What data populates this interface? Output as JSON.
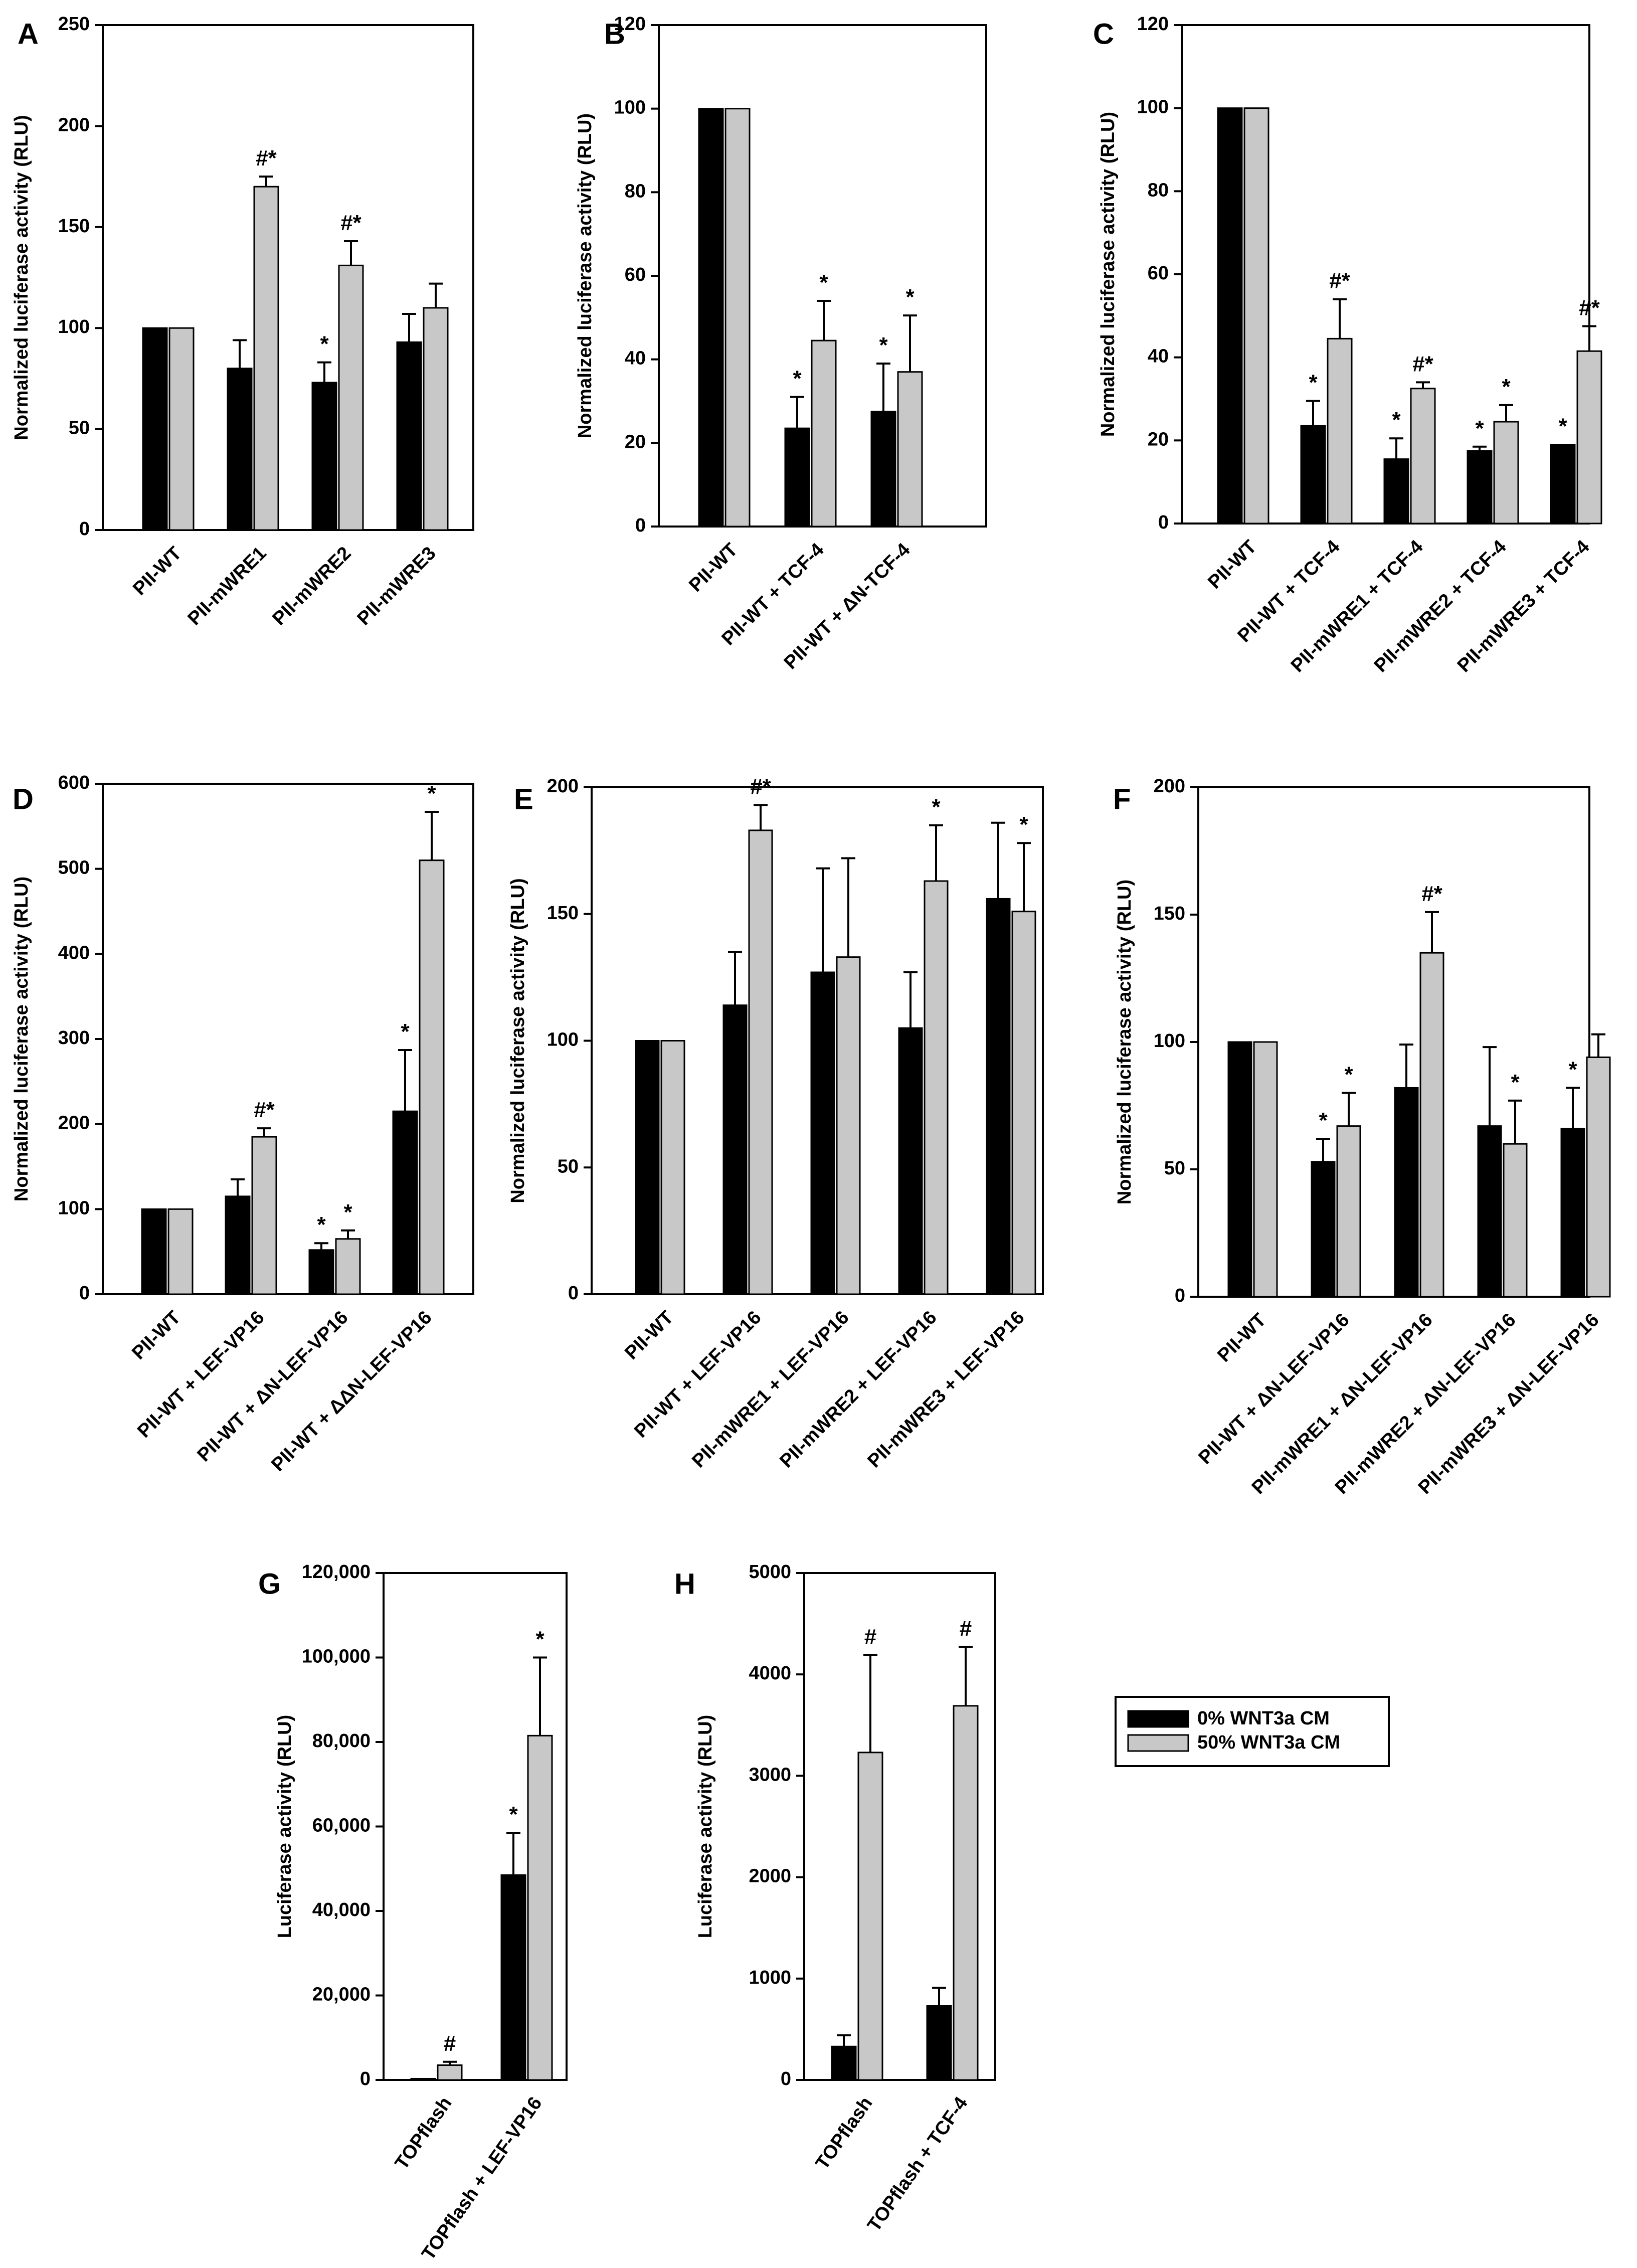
{
  "legend": {
    "items": [
      {
        "label": "0% WNT3a CM",
        "color": "#000000"
      },
      {
        "label": "50% WNT3a CM",
        "color": "#c8c8c8"
      }
    ]
  },
  "chart_data": [
    {
      "panel": "A",
      "type": "bar",
      "ylabel": "Normalized luciferase activity (RLU)",
      "ylim": [
        0,
        250
      ],
      "ticks": [
        0,
        50,
        100,
        150,
        200,
        250
      ],
      "tick_labels": [
        "0",
        "50",
        "100",
        "150",
        "200",
        "250"
      ],
      "categories": [
        "PII-WT",
        "PII-mWRE1",
        "PII-mWRE2",
        "PII-mWRE3"
      ],
      "series": [
        {
          "name": "0% WNT3a CM",
          "values": [
            100,
            80,
            73,
            93
          ],
          "errors": [
            0,
            14,
            10,
            14
          ],
          "sig": [
            "",
            "",
            "*",
            ""
          ]
        },
        {
          "name": "50% WNT3a CM",
          "values": [
            100,
            170,
            131,
            110
          ],
          "errors": [
            0,
            5,
            12,
            12
          ],
          "sig": [
            "",
            "#*",
            "#*",
            ""
          ]
        }
      ]
    },
    {
      "panel": "B",
      "type": "bar",
      "ylabel": "Normalized luciferase activity (RLU)",
      "ylim": [
        0,
        120
      ],
      "ticks": [
        0,
        20,
        40,
        60,
        80,
        100,
        120
      ],
      "tick_labels": [
        "0",
        "20",
        "40",
        "60",
        "80",
        "100",
        "120"
      ],
      "categories": [
        "PII-WT",
        "PII-WT + TCF-4",
        "PII-WT + ΔN-TCF-4"
      ],
      "series": [
        {
          "name": "0% WNT3a CM",
          "values": [
            100,
            23.5,
            27.5
          ],
          "errors": [
            0,
            7.5,
            11.5
          ],
          "sig": [
            "",
            "*",
            "*"
          ]
        },
        {
          "name": "50% WNT3a CM",
          "values": [
            100,
            44.5,
            37
          ],
          "errors": [
            0,
            9.5,
            13.5
          ],
          "sig": [
            "",
            "*",
            "*"
          ]
        }
      ]
    },
    {
      "panel": "C",
      "type": "bar",
      "ylabel": "Normalized luciferase activity (RLU)",
      "ylim": [
        0,
        120
      ],
      "ticks": [
        0,
        20,
        40,
        60,
        80,
        100,
        120
      ],
      "tick_labels": [
        "0",
        "20",
        "40",
        "60",
        "80",
        "100",
        "120"
      ],
      "categories": [
        "PII-WT",
        "PII-WT + TCF-4",
        "PII-mWRE1 + TCF-4",
        "PII-mWRE2 + TCF-4",
        "PII-mWRE3 + TCF-4"
      ],
      "series": [
        {
          "name": "0% WNT3a CM",
          "values": [
            100,
            23.5,
            15.5,
            17.5,
            19
          ],
          "errors": [
            0,
            6,
            5,
            1,
            0
          ],
          "sig": [
            "",
            "*",
            "*",
            "*",
            "*"
          ]
        },
        {
          "name": "50% WNT3a CM",
          "values": [
            100,
            44.5,
            32.5,
            24.5,
            41.5
          ],
          "errors": [
            0,
            9.5,
            1.5,
            4,
            6
          ],
          "sig": [
            "",
            "#*",
            "#*",
            "*",
            "#*"
          ]
        }
      ]
    },
    {
      "panel": "D",
      "type": "bar",
      "ylabel": "Normalized luciferase activity (RLU)",
      "ylim": [
        0,
        600
      ],
      "ticks": [
        0,
        100,
        200,
        300,
        400,
        500,
        600
      ],
      "tick_labels": [
        "0",
        "100",
        "200",
        "300",
        "400",
        "500",
        "600"
      ],
      "categories": [
        "PII-WT",
        "PII-WT + LEF-VP16",
        "PII-WT + ΔN-LEF-VP16",
        "PII-WT + ΔΔN-LEF-VP16"
      ],
      "series": [
        {
          "name": "0% WNT3a CM",
          "values": [
            100,
            115,
            52,
            215
          ],
          "errors": [
            0,
            20,
            8,
            72
          ],
          "sig": [
            "",
            "",
            "*",
            "*"
          ]
        },
        {
          "name": "50% WNT3a CM",
          "values": [
            100,
            185,
            65,
            510
          ],
          "errors": [
            0,
            10,
            10,
            57
          ],
          "sig": [
            "",
            "#*",
            "*",
            "*"
          ]
        }
      ]
    },
    {
      "panel": "E",
      "type": "bar",
      "ylabel": "Normalized luciferase activity (RLU)",
      "ylim": [
        0,
        200
      ],
      "ticks": [
        0,
        50,
        100,
        150,
        200
      ],
      "tick_labels": [
        "0",
        "50",
        "100",
        "150",
        "200"
      ],
      "categories": [
        "PII-WT",
        "PII-WT + LEF-VP16",
        "PII-mWRE1 + LEF-VP16",
        "PII-mWRE2 + LEF-VP16",
        "PII-mWRE3 + LEF-VP16"
      ],
      "series": [
        {
          "name": "0% WNT3a CM",
          "values": [
            100,
            114,
            127,
            105,
            156
          ],
          "errors": [
            0,
            21,
            41,
            22,
            30
          ],
          "sig": [
            "",
            "",
            "",
            "",
            ""
          ]
        },
        {
          "name": "50% WNT3a CM",
          "values": [
            100,
            183,
            133,
            163,
            151
          ],
          "errors": [
            0,
            10,
            39,
            22,
            27
          ],
          "sig": [
            "",
            "#*",
            "",
            "*",
            "*"
          ]
        }
      ]
    },
    {
      "panel": "F",
      "type": "bar",
      "ylabel": "Normalized luciferase activity (RLU)",
      "ylim": [
        0,
        200
      ],
      "ticks": [
        0,
        50,
        100,
        150,
        200
      ],
      "tick_labels": [
        "0",
        "50",
        "100",
        "150",
        "200"
      ],
      "categories": [
        "PII-WT",
        "PII-WT + ΔN-LEF-VP16",
        "PII-mWRE1 + ΔN-LEF-VP16",
        "PII-mWRE2 + ΔN-LEF-VP16",
        "PII-mWRE3 + ΔN-LEF-VP16"
      ],
      "series": [
        {
          "name": "0% WNT3a CM",
          "values": [
            100,
            53,
            82,
            67,
            66
          ],
          "errors": [
            0,
            9,
            17,
            31,
            16
          ],
          "sig": [
            "",
            "*",
            "",
            "",
            "*"
          ]
        },
        {
          "name": "50% WNT3a CM",
          "values": [
            100,
            67,
            135,
            60,
            94
          ],
          "errors": [
            0,
            13,
            16,
            17,
            9
          ],
          "sig": [
            "",
            "*",
            "#*",
            "*",
            ""
          ]
        }
      ]
    },
    {
      "panel": "G",
      "type": "bar",
      "ylabel": "Luciferase activity (RLU)",
      "ylim": [
        0,
        120000
      ],
      "ticks": [
        0,
        20000,
        40000,
        60000,
        80000,
        100000,
        120000
      ],
      "tick_labels": [
        "0",
        "20,000",
        "40,000",
        "60,000",
        "80,000",
        "100,000",
        "120,000"
      ],
      "categories": [
        "TOPflash",
        "TOPflash + LEF-VP16"
      ],
      "series": [
        {
          "name": "0% WNT3a CM",
          "values": [
            300,
            48500
          ],
          "errors": [
            0,
            10000
          ],
          "sig": [
            "",
            "*"
          ]
        },
        {
          "name": "50% WNT3a CM",
          "values": [
            3500,
            81500
          ],
          "errors": [
            800,
            18500
          ],
          "sig": [
            "#",
            "*"
          ]
        }
      ]
    },
    {
      "panel": "H",
      "type": "bar",
      "ylabel": "Luciferase activity (RLU)",
      "ylim": [
        0,
        5000
      ],
      "ticks": [
        0,
        1000,
        2000,
        3000,
        4000,
        5000
      ],
      "tick_labels": [
        "0",
        "1000",
        "2000",
        "3000",
        "4000",
        "5000"
      ],
      "categories": [
        "TOPflash",
        "TOPflash + TCF-4"
      ],
      "series": [
        {
          "name": "0% WNT3a CM",
          "values": [
            330,
            730
          ],
          "errors": [
            110,
            180
          ],
          "sig": [
            "",
            ""
          ]
        },
        {
          "name": "50% WNT3a CM",
          "values": [
            3230,
            3690
          ],
          "errors": [
            960,
            580
          ],
          "sig": [
            "#",
            "#"
          ]
        }
      ]
    }
  ]
}
